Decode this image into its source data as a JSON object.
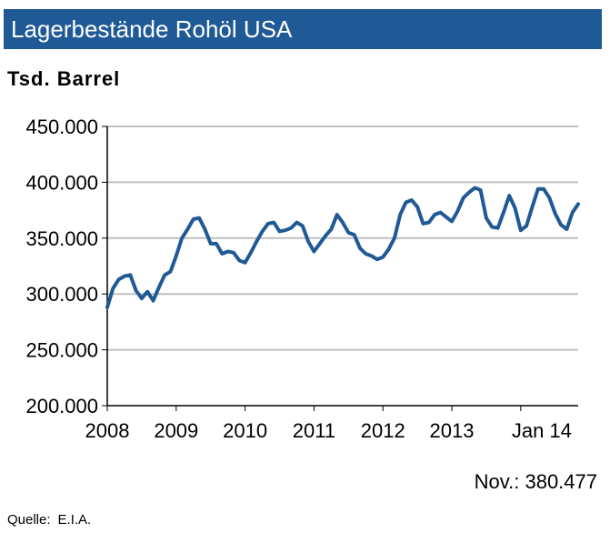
{
  "header": {
    "title": "Lagerbestände Rohöl USA"
  },
  "unit_label": "Tsd. Barrel",
  "latest_value": "Nov.: 380.477",
  "source": {
    "label": "Quelle:",
    "value": "E.I.A."
  },
  "colors": {
    "title_bg": "#1f5a96",
    "line": "#1f5a96",
    "grid": "#c0c0c0",
    "axis": "#000000"
  },
  "chart_data": {
    "type": "line",
    "title": "Lagerbestände Rohöl USA",
    "ylabel": "Tsd. Barrel",
    "xlabel": "",
    "ylim": [
      200000,
      450000
    ],
    "yticks": [
      200000,
      250000,
      300000,
      350000,
      400000,
      450000
    ],
    "ytick_labels": [
      "200.000",
      "250.000",
      "300.000",
      "350.000",
      "400.000",
      "450.000"
    ],
    "xlim": [
      "2008-01",
      "2014-11"
    ],
    "xticks": [
      "2008-01",
      "2009-01",
      "2010-01",
      "2011-01",
      "2012-01",
      "2013-01",
      "2014-01"
    ],
    "xtick_labels": [
      "2008",
      "2009",
      "2010",
      "2011",
      "2012",
      "2013",
      "Jan 14"
    ],
    "grid": true,
    "legend": "none",
    "series": [
      {
        "x": [
          "2008-01",
          "2008-02",
          "2008-03",
          "2008-04",
          "2008-05",
          "2008-06",
          "2008-07",
          "2008-08",
          "2008-09",
          "2008-10",
          "2008-11",
          "2008-12",
          "2009-01",
          "2009-02",
          "2009-03",
          "2009-04",
          "2009-05",
          "2009-06",
          "2009-07",
          "2009-08",
          "2009-09",
          "2009-10",
          "2009-11",
          "2009-12",
          "2010-01",
          "2010-02",
          "2010-03",
          "2010-04",
          "2010-05",
          "2010-06",
          "2010-07",
          "2010-08",
          "2010-09",
          "2010-10",
          "2010-11",
          "2010-12",
          "2011-01",
          "2011-02",
          "2011-03",
          "2011-04",
          "2011-05",
          "2011-06",
          "2011-07",
          "2011-08",
          "2011-09",
          "2011-10",
          "2011-11",
          "2011-12",
          "2012-01",
          "2012-02",
          "2012-03",
          "2012-04",
          "2012-05",
          "2012-06",
          "2012-07",
          "2012-08",
          "2012-09",
          "2012-10",
          "2012-11",
          "2012-12",
          "2013-01",
          "2013-02",
          "2013-03",
          "2013-04",
          "2013-05",
          "2013-06",
          "2013-07",
          "2013-08",
          "2013-09",
          "2013-10",
          "2013-11",
          "2013-12",
          "2014-01",
          "2014-02",
          "2014-03",
          "2014-04",
          "2014-05",
          "2014-06",
          "2014-07",
          "2014-08",
          "2014-09",
          "2014-10",
          "2014-11"
        ],
        "values": [
          288000,
          305000,
          313000,
          316000,
          317000,
          303000,
          296000,
          302000,
          294000,
          306000,
          317000,
          320000,
          334000,
          350000,
          358000,
          367000,
          368000,
          358000,
          345000,
          345000,
          336000,
          338000,
          337000,
          330000,
          328000,
          337000,
          347000,
          356000,
          363000,
          364000,
          356000,
          357000,
          359000,
          364000,
          361000,
          347000,
          338000,
          345000,
          352000,
          358000,
          371000,
          364000,
          355000,
          353000,
          341000,
          336000,
          334000,
          331000,
          333000,
          340000,
          350000,
          371000,
          382000,
          384000,
          378000,
          363000,
          364000,
          371000,
          373000,
          369000,
          365000,
          374000,
          386000,
          391000,
          395000,
          393000,
          368000,
          360000,
          359000,
          373000,
          388000,
          377000,
          357000,
          361000,
          378000,
          394000,
          394000,
          386000,
          372000,
          362000,
          358000,
          373000,
          380477
        ]
      }
    ]
  }
}
